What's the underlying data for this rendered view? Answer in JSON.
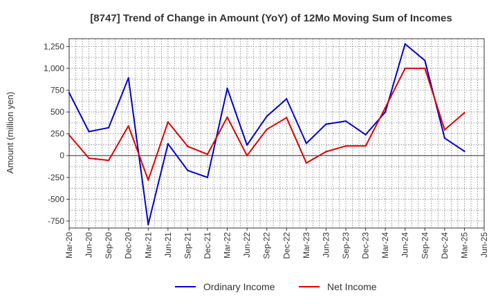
{
  "chart_data": {
    "type": "line",
    "title": "[8747]  Trend of Change in Amount (YoY) of 12Mo Moving Sum of Incomes",
    "ylabel": "Amount (million yen)",
    "xlabel": "",
    "ylim": [
      -830,
      1340
    ],
    "yticks": [
      1250,
      1000,
      750,
      500,
      250,
      0,
      -250,
      -500,
      -750
    ],
    "ytick_labels": [
      "1,250",
      "1,000",
      "750",
      "500",
      "250",
      "0",
      "-250",
      "-500",
      "-750"
    ],
    "x_ticks": [
      "Mar-20",
      "Jun-20",
      "Sep-20",
      "Dec-20",
      "Mar-21",
      "Jun-21",
      "Sep-21",
      "Dec-21",
      "Mar-22",
      "Jun-22",
      "Sep-22",
      "Dec-22",
      "Mar-23",
      "Jun-23",
      "Sep-23",
      "Dec-23",
      "Mar-24",
      "Jun-24",
      "Sep-24",
      "Dec-24",
      "Mar-25",
      "Jun-25"
    ],
    "grid": true,
    "legend_position": "bottom",
    "series": [
      {
        "name": "Ordinary Income",
        "color": "#0000cc",
        "values": [
          720,
          275,
          320,
          890,
          -790,
          135,
          -170,
          -250,
          770,
          120,
          450,
          650,
          140,
          360,
          395,
          240,
          500,
          1280,
          1090,
          200,
          50
        ]
      },
      {
        "name": "Net Income",
        "color": "#dd0000",
        "values": [
          235,
          -30,
          -55,
          340,
          -280,
          385,
          105,
          15,
          440,
          0,
          300,
          435,
          -85,
          45,
          110,
          110,
          550,
          1000,
          1000,
          295,
          490
        ]
      }
    ]
  }
}
